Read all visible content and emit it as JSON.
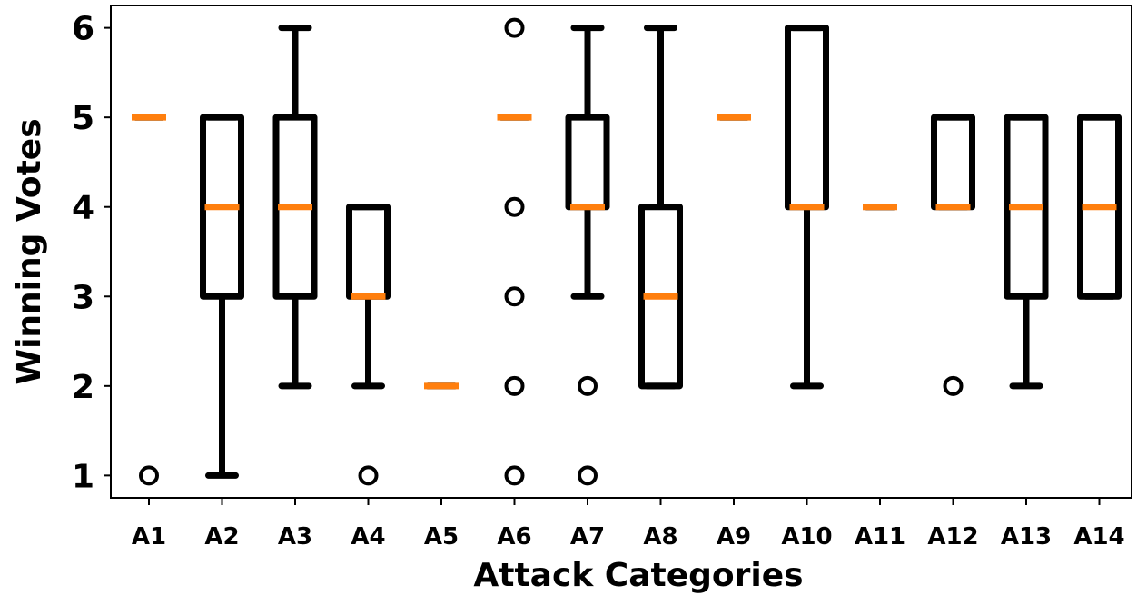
{
  "chart_data": {
    "type": "boxplot",
    "title": "",
    "xlabel": "Attack Categories",
    "ylabel": "Winning Votes",
    "ylim": [
      0.75,
      6.25
    ],
    "yticks": [
      1,
      2,
      3,
      4,
      5,
      6
    ],
    "grid": false,
    "categories": [
      "A1",
      "A2",
      "A3",
      "A4",
      "A5",
      "A6",
      "A7",
      "A8",
      "A9",
      "A10",
      "A11",
      "A12",
      "A13",
      "A14"
    ],
    "boxes": [
      {
        "label": "A1",
        "whisker_low": 5,
        "q1": 5,
        "median": 5,
        "q3": 5,
        "whisker_high": 5,
        "outliers": [
          1
        ]
      },
      {
        "label": "A2",
        "whisker_low": 1,
        "q1": 3,
        "median": 4,
        "q3": 5,
        "whisker_high": 5,
        "outliers": []
      },
      {
        "label": "A3",
        "whisker_low": 2,
        "q1": 3,
        "median": 4,
        "q3": 5,
        "whisker_high": 6,
        "outliers": []
      },
      {
        "label": "A4",
        "whisker_low": 2,
        "q1": 3,
        "median": 3,
        "q3": 4,
        "whisker_high": 4,
        "outliers": [
          1
        ]
      },
      {
        "label": "A5",
        "whisker_low": 2,
        "q1": 2,
        "median": 2,
        "q3": 2,
        "whisker_high": 2,
        "outliers": []
      },
      {
        "label": "A6",
        "whisker_low": 5,
        "q1": 5,
        "median": 5,
        "q3": 5,
        "whisker_high": 5,
        "outliers": [
          1,
          2,
          3,
          4,
          6
        ]
      },
      {
        "label": "A7",
        "whisker_low": 3,
        "q1": 4,
        "median": 4,
        "q3": 5,
        "whisker_high": 6,
        "outliers": [
          1,
          2
        ]
      },
      {
        "label": "A8",
        "whisker_low": 2,
        "q1": 2,
        "median": 3,
        "q3": 4,
        "whisker_high": 6,
        "outliers": []
      },
      {
        "label": "A9",
        "whisker_low": 5,
        "q1": 5,
        "median": 5,
        "q3": 5,
        "whisker_high": 5,
        "outliers": []
      },
      {
        "label": "A10",
        "whisker_low": 2,
        "q1": 4,
        "median": 4,
        "q3": 6,
        "whisker_high": 6,
        "outliers": []
      },
      {
        "label": "A11",
        "whisker_low": 4,
        "q1": 4,
        "median": 4,
        "q3": 4,
        "whisker_high": 4,
        "outliers": []
      },
      {
        "label": "A12",
        "whisker_low": 4,
        "q1": 4,
        "median": 4,
        "q3": 5,
        "whisker_high": 5,
        "outliers": [
          2
        ]
      },
      {
        "label": "A13",
        "whisker_low": 2,
        "q1": 3,
        "median": 4,
        "q3": 5,
        "whisker_high": 5,
        "outliers": []
      },
      {
        "label": "A14",
        "whisker_low": 3,
        "q1": 3,
        "median": 4,
        "q3": 5,
        "whisker_high": 5,
        "outliers": []
      }
    ],
    "colors": {
      "box": "#000000",
      "median": "#ff7f0e",
      "outlier": "#000000"
    }
  }
}
